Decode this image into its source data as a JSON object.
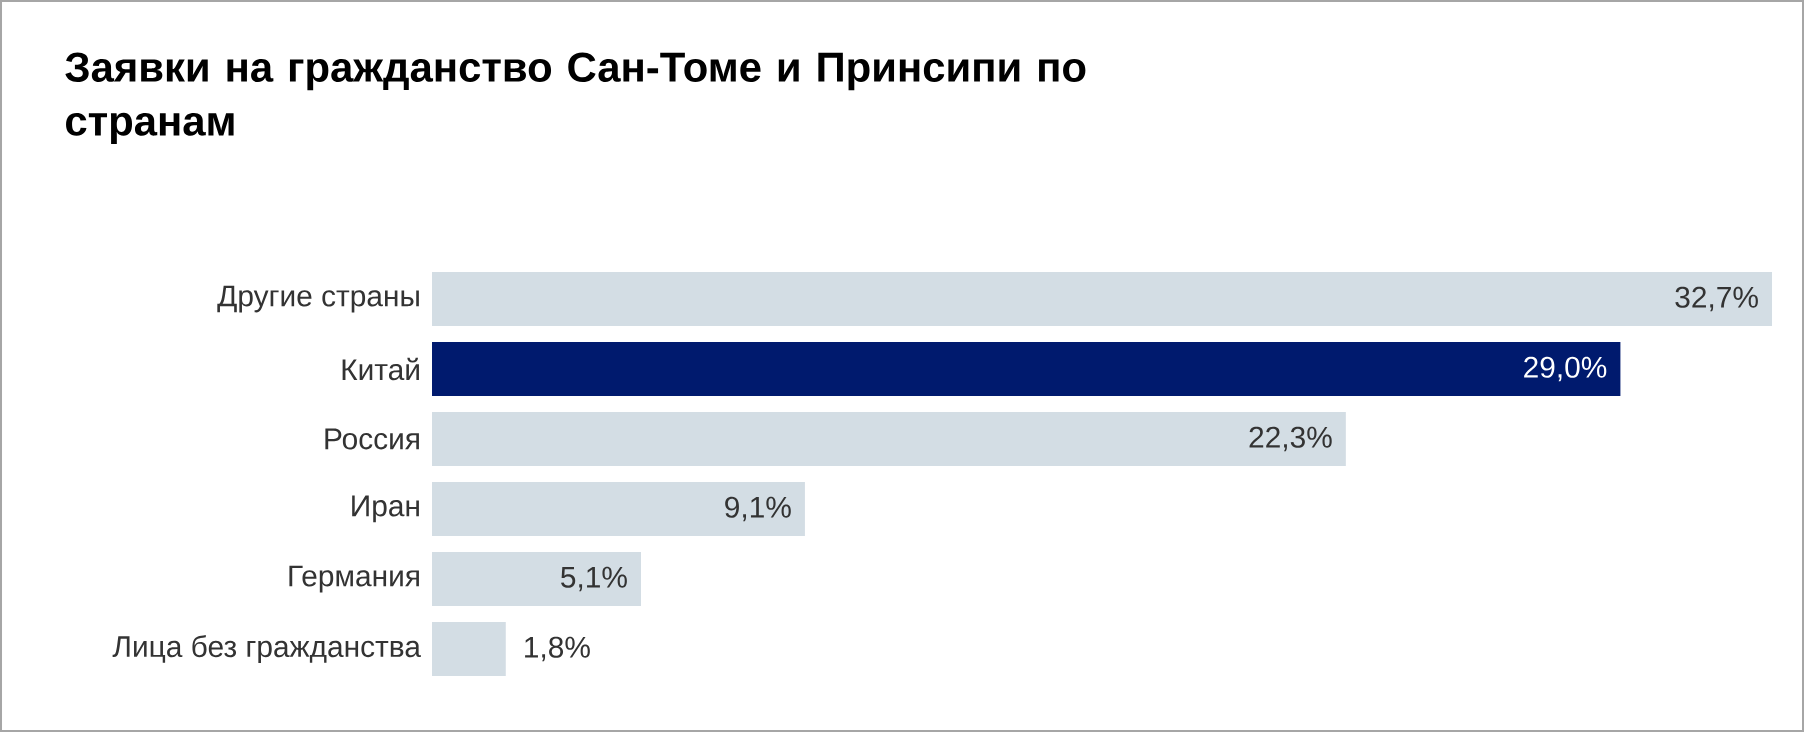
{
  "chart_data": {
    "type": "bar",
    "orientation": "horizontal",
    "title": "Заявки на гражданство Сан-Томе и Принсипи по странам",
    "categories": [
      "Другие страны",
      "Китай",
      "Россия",
      "Иран",
      "Германия",
      "Лица без гражданства"
    ],
    "values": [
      32.7,
      29.0,
      22.3,
      9.1,
      5.1,
      1.8
    ],
    "value_labels": [
      "32,7%",
      "29,0%",
      "22,3%",
      "9,1%",
      "5,1%",
      "1,8%"
    ],
    "colors": [
      "#d3dde4",
      "#001a6e",
      "#d3dde4",
      "#d3dde4",
      "#d3dde4",
      "#d3dde4"
    ],
    "tick_labels": "y"
  }
}
